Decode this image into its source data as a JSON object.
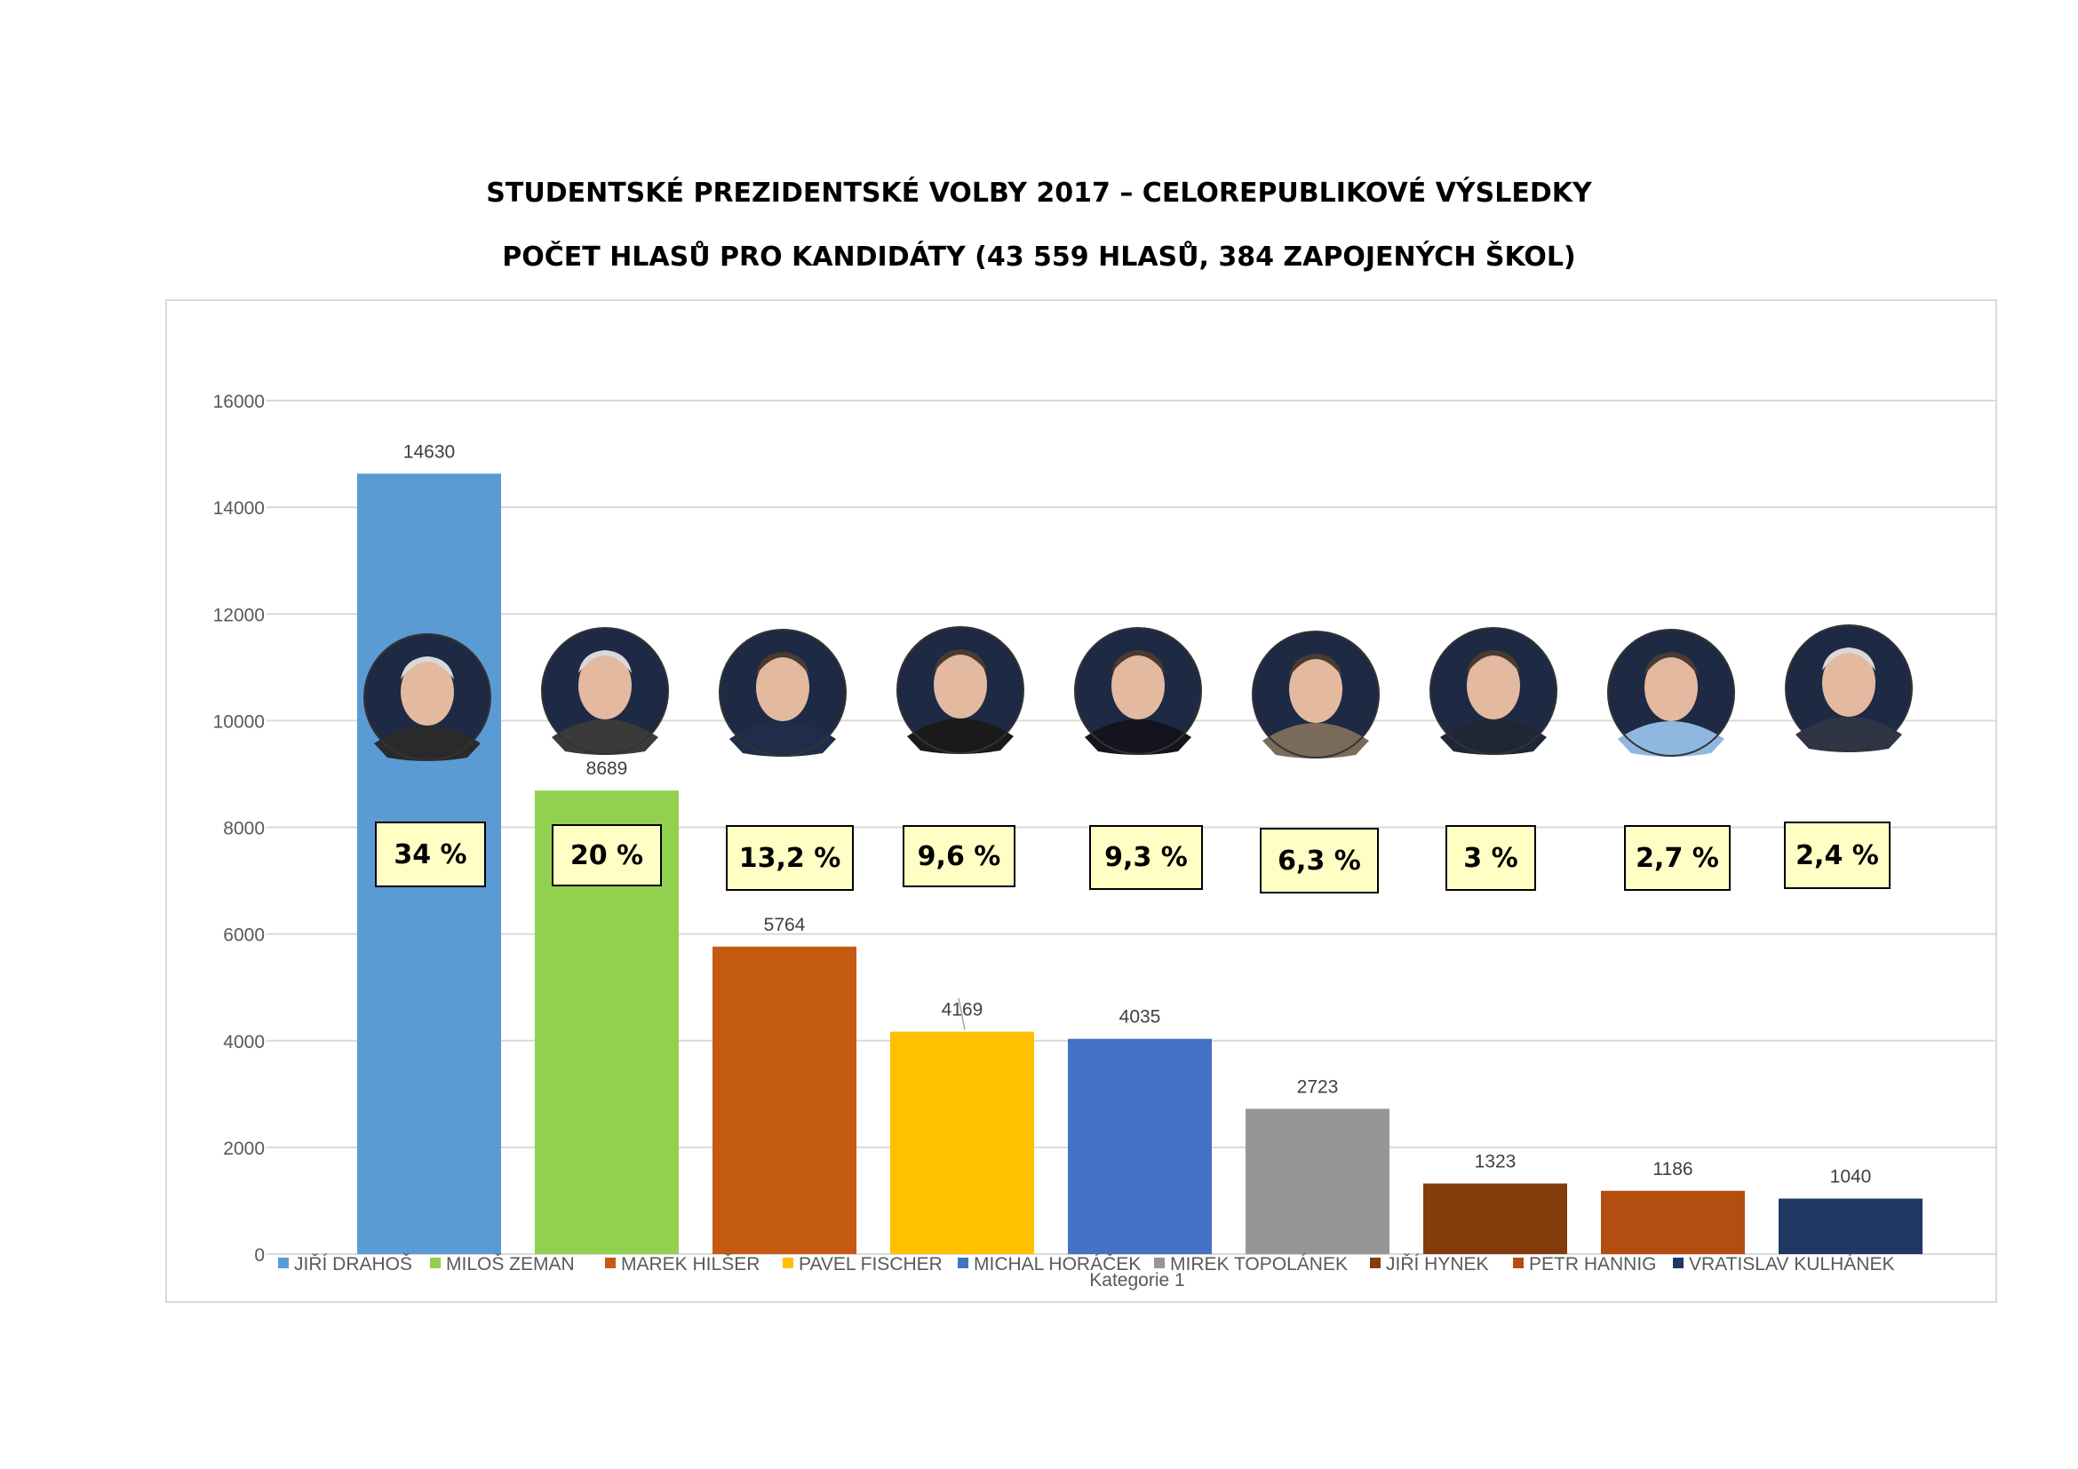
{
  "header": {
    "title_line1": "STUDENTSKÉ PREZIDENTSKÉ VOLBY 2017 – CELOREPUBLIKOVÉ VÝSLEDKY",
    "title_line2": "POČET HLASŮ PRO KANDIDÁTY (43 559 HLASŮ, 384 ZAPOJENÝCH ŠKOL)"
  },
  "chart_data": {
    "type": "bar",
    "title": "STUDENTSKÉ PREZIDENTSKÉ VOLBY 2017 – CELOREPUBLIKOVÉ VÝSLEDKY",
    "subtitle": "POČET HLASŮ PRO KANDIDÁTY (43 559 HLASŮ, 384 ZAPOJENÝCH ŠKOL)",
    "categories": [
      "Kategorie 1"
    ],
    "xlabel": "Kategorie 1",
    "ylabel": "",
    "ylim": [
      0,
      16000
    ],
    "yticks": [
      0,
      2000,
      4000,
      6000,
      8000,
      10000,
      12000,
      14000,
      16000
    ],
    "grid": true,
    "legend_position": "bottom",
    "series": [
      {
        "name": "JIŘÍ DRAHOŠ",
        "value": 14630,
        "percent_label": "34  %",
        "color": "#5b9bd5"
      },
      {
        "name": "MILOŠ ZEMAN",
        "value": 8689,
        "percent_label": "20 %",
        "color": "#92d050"
      },
      {
        "name": "MAREK HILŠER",
        "value": 5764,
        "percent_label": "13,2 %",
        "color": "#c55a11"
      },
      {
        "name": "PAVEL FISCHER",
        "value": 4169,
        "percent_label": "9,6 %",
        "color": "#ffc000"
      },
      {
        "name": "MICHAL HORÁČEK",
        "value": 4035,
        "percent_label": "9,3 %",
        "color": "#4472c4"
      },
      {
        "name": "MIREK TOPOLÁNEK",
        "value": 2723,
        "percent_label": "6,3 %",
        "color": "#969696"
      },
      {
        "name": "JIŘÍ HYNEK",
        "value": 1323,
        "percent_label": "3 %",
        "color": "#843c0c"
      },
      {
        "name": "PETR HANNIG",
        "value": 1186,
        "percent_label": "2,7 %",
        "color": "#b34d10"
      },
      {
        "name": "VRATISLAV KULHÁNEK",
        "value": 1040,
        "percent_label": "2,4 %",
        "color": "#203864"
      }
    ]
  }
}
